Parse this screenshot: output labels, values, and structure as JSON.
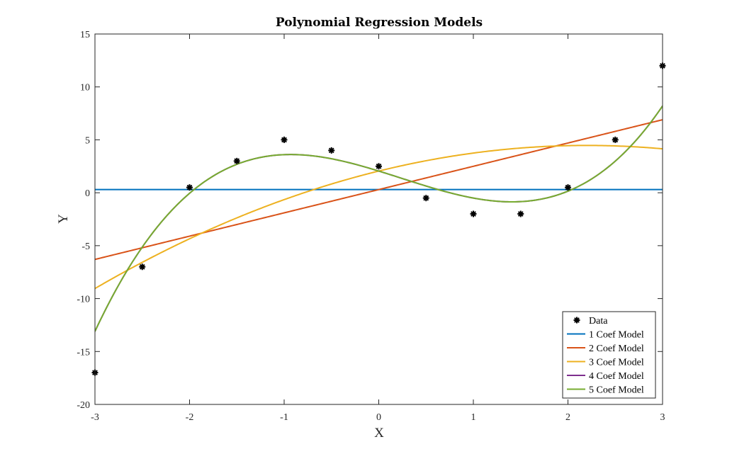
{
  "chart_data": {
    "type": "line",
    "title": "Polynomial Regression Models",
    "xlabel": "X",
    "ylabel": "Y",
    "xlim": [
      -3,
      3
    ],
    "ylim": [
      -20,
      15
    ],
    "xticks": [
      "-3",
      "-2",
      "-1",
      "0",
      "1",
      "2",
      "3"
    ],
    "yticks": [
      "15",
      "10",
      "5",
      "0",
      "-5",
      "-10",
      "-15",
      "-20"
    ],
    "grid": false,
    "legend_position": "bottom-right",
    "data_series": {
      "name": "Data",
      "marker": "asterisk",
      "color": "#000000",
      "x": [
        -3,
        -2.5,
        -2,
        -1.5,
        -1,
        -0.5,
        0,
        0.5,
        1,
        1.5,
        2,
        2.5,
        3
      ],
      "y": [
        -17,
        -7,
        0.5,
        3,
        5,
        4,
        2.5,
        -0.5,
        -2,
        -2,
        0.5,
        5,
        12
      ]
    },
    "series": [
      {
        "name": "1 Coef Model",
        "color": "#0072BD",
        "coefficients": [
          0.3
        ]
      },
      {
        "name": "2 Coef Model",
        "color": "#D95319",
        "coefficients": [
          0.3,
          2.2
        ]
      },
      {
        "name": "3 Coef Model",
        "color": "#EDB120",
        "coefficients": [
          2.05,
          2.2,
          -0.5
        ]
      },
      {
        "name": "4 Coef Model",
        "color": "#7E2F8E",
        "coefficients": [
          2.05,
          -2.75,
          -0.5,
          0.7
        ]
      },
      {
        "name": "5 Coef Model",
        "color": "#77AC30",
        "coefficients": [
          2.05,
          -2.75,
          -0.5,
          0.7,
          0
        ]
      }
    ]
  }
}
